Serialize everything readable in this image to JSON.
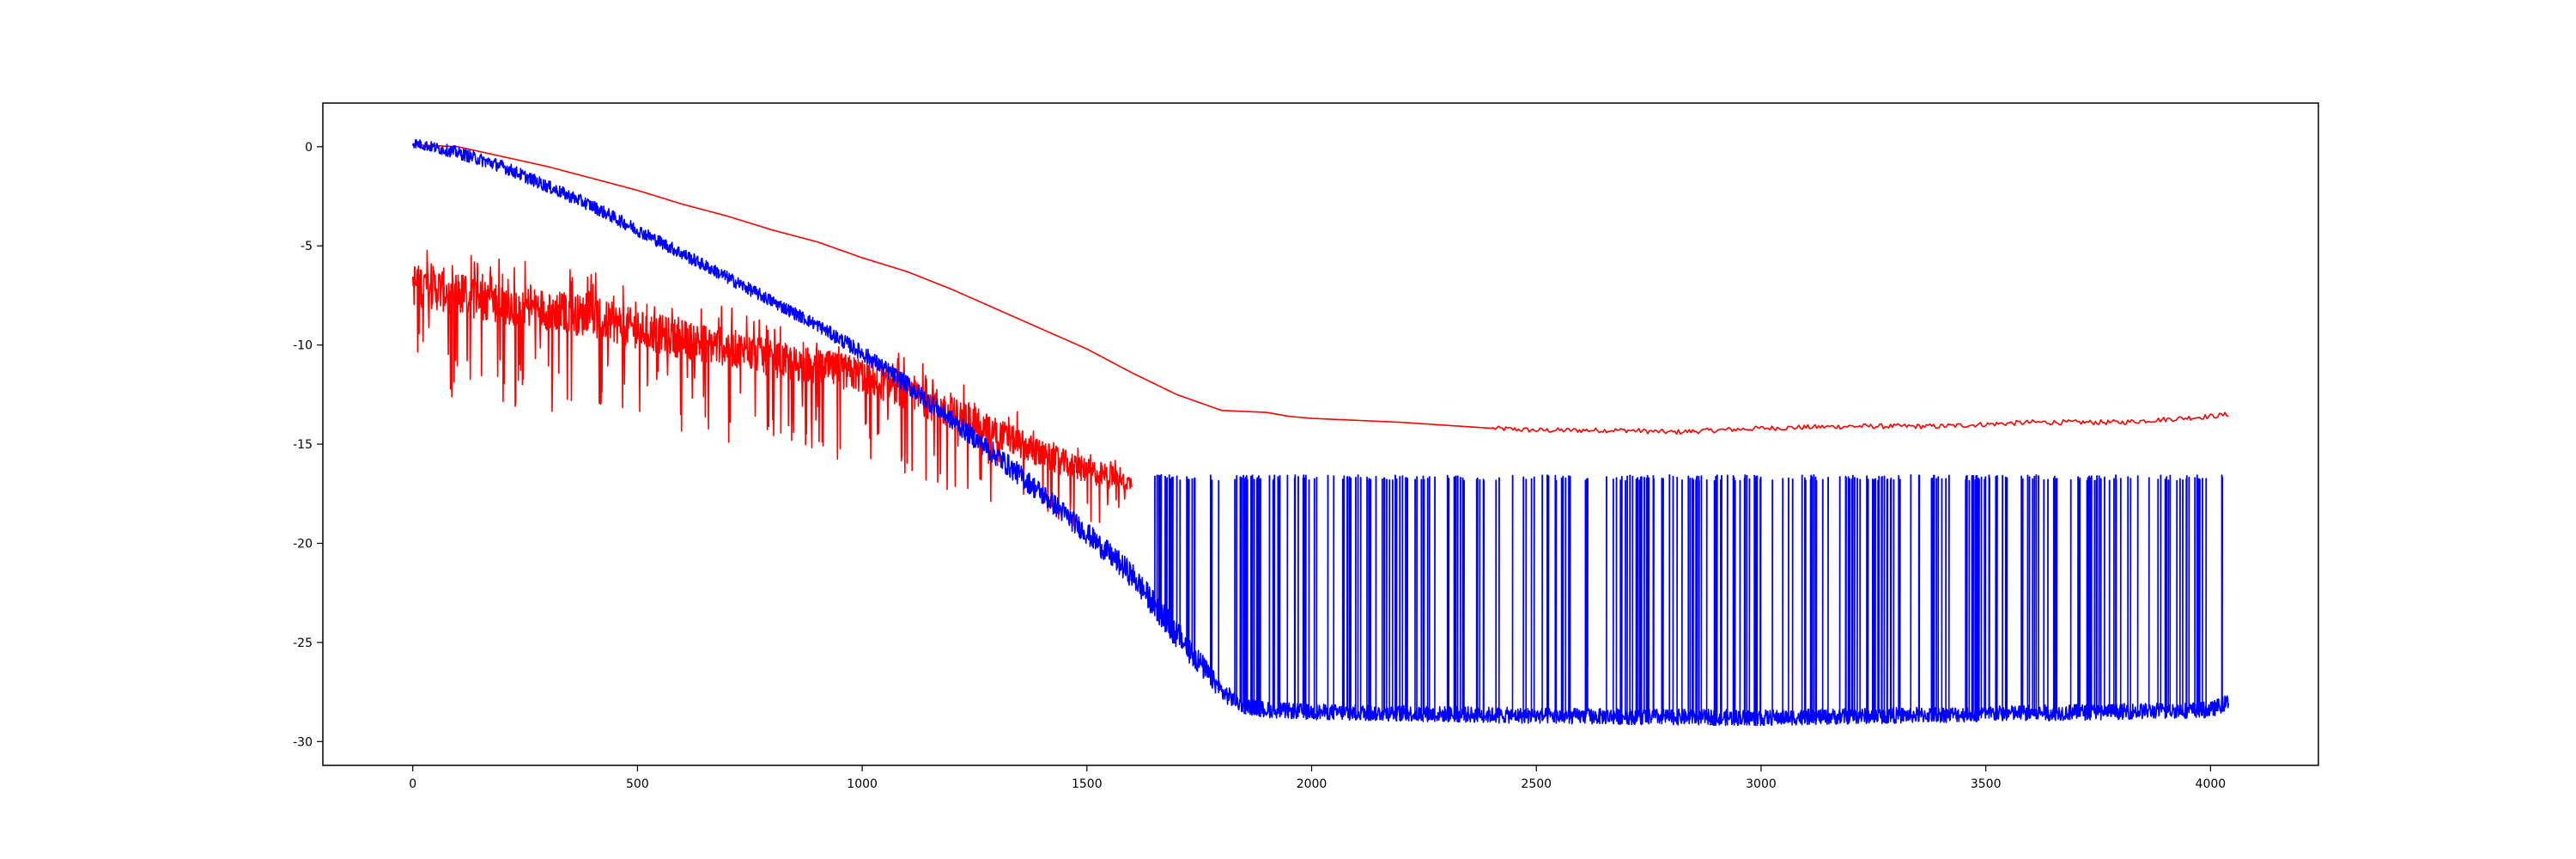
{
  "chart_data": {
    "type": "line",
    "title": "",
    "xlabel": "",
    "ylabel": "",
    "xlim": [
      -200,
      4240
    ],
    "ylim": [
      -31.2,
      2.2
    ],
    "xticks": [
      0,
      500,
      1000,
      1500,
      2000,
      2500,
      3000,
      3500,
      4000
    ],
    "yticks": [
      0,
      -5,
      -10,
      -15,
      -20,
      -25,
      -30
    ],
    "grid": false,
    "legend": "none",
    "series": [
      {
        "color": "#ff0000",
        "style": "smooth",
        "x": [
          0,
          100,
          200,
          300,
          400,
          500,
          600,
          700,
          800,
          900,
          1000,
          1100,
          1200,
          1300,
          1400,
          1500,
          1600,
          1700,
          1800,
          1900,
          1950,
          2000,
          2200,
          2400,
          2500,
          2700,
          2800,
          3000,
          3200,
          3400,
          3600,
          3800,
          4000,
          4040
        ],
        "y": [
          0.1,
          0.0,
          -0.5,
          -1.0,
          -1.6,
          -2.2,
          -2.9,
          -3.5,
          -4.2,
          -4.8,
          -5.6,
          -6.3,
          -7.2,
          -8.2,
          -9.2,
          -10.2,
          -11.4,
          -12.5,
          -13.3,
          -13.4,
          -13.6,
          -13.7,
          -13.9,
          -14.2,
          -14.3,
          -14.3,
          -14.4,
          -14.2,
          -14.1,
          -14.1,
          -13.9,
          -13.9,
          -13.6,
          -13.5
        ]
      },
      {
        "color": "#ff0000",
        "style": "noisy",
        "x": [
          0,
          100,
          200,
          300,
          400,
          500,
          600,
          700,
          800,
          900,
          1000,
          1100,
          1200,
          1300,
          1400,
          1500,
          1550,
          1600
        ],
        "y": [
          -7.0,
          -7.5,
          -8.0,
          -8.3,
          -8.7,
          -9.3,
          -9.8,
          -10.2,
          -10.8,
          -11.2,
          -11.6,
          -12.5,
          -13.5,
          -14.5,
          -15.6,
          -16.4,
          -16.7,
          -17.0
        ],
        "noise": [
          1.6,
          1.6,
          1.5,
          1.5,
          1.5,
          1.4,
          1.4,
          1.4,
          1.3,
          1.3,
          1.3,
          1.2,
          1.2,
          1.1,
          1.0,
          0.9,
          0.9,
          0.5
        ]
      },
      {
        "color": "#0000ff",
        "style": "noisy",
        "x": [
          0,
          100,
          200,
          300,
          400,
          500,
          600,
          700,
          800,
          900,
          1000,
          1100,
          1200,
          1300,
          1400,
          1500,
          1600,
          1700,
          1750,
          1800,
          1850,
          1900,
          2000,
          2500,
          3000,
          3500,
          4000,
          4040
        ],
        "y": [
          0.2,
          -0.3,
          -1.0,
          -2.0,
          -3.0,
          -4.2,
          -5.4,
          -6.6,
          -7.8,
          -9.0,
          -10.4,
          -12.0,
          -13.8,
          -15.6,
          -17.5,
          -19.5,
          -21.6,
          -24.6,
          -26.0,
          -27.5,
          -28.2,
          -28.4,
          -28.5,
          -28.7,
          -28.8,
          -28.6,
          -28.4,
          -28.0
        ],
        "noise": [
          0.3,
          0.4,
          0.4,
          0.4,
          0.4,
          0.4,
          0.4,
          0.4,
          0.4,
          0.4,
          0.5,
          0.6,
          0.6,
          0.7,
          0.7,
          0.7,
          0.8,
          0.9,
          0.8,
          0.6,
          0.5,
          0.5,
          0.5,
          0.5,
          0.5,
          0.5,
          0.5,
          0.5
        ],
        "spikes": {
          "from": 1650,
          "to": 4040,
          "level": -16.7,
          "count": 330
        }
      }
    ]
  }
}
